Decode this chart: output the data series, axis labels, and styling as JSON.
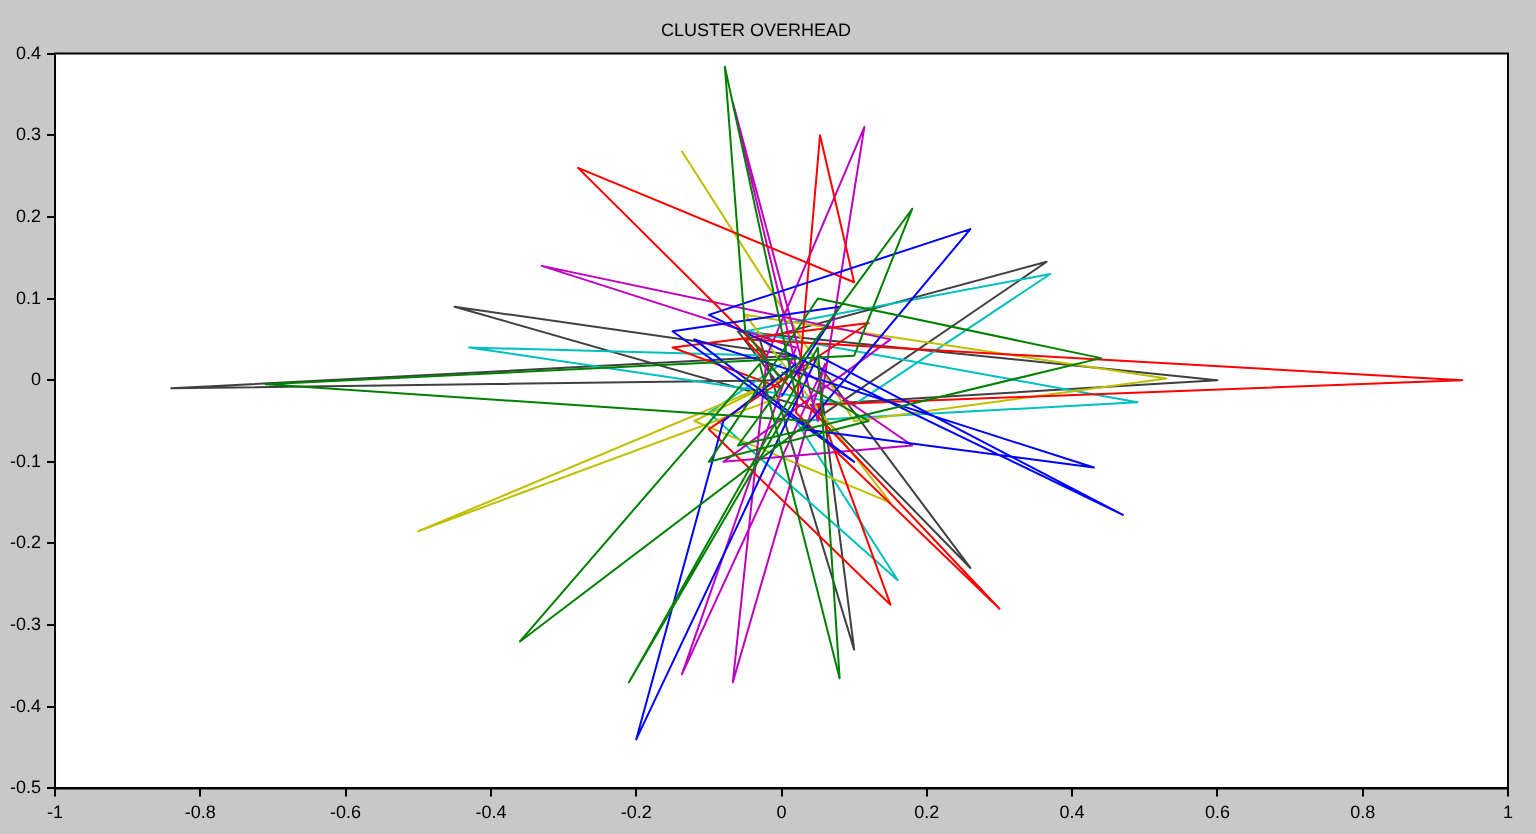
{
  "chart_data": {
    "type": "line",
    "title": "CLUSTER OVERHEAD",
    "xlim": [
      -1,
      1
    ],
    "ylim": [
      -0.5,
      0.4
    ],
    "xticks": [
      -1,
      -0.8,
      -0.6,
      -0.4,
      -0.2,
      0,
      0.2,
      0.4,
      0.6,
      0.8,
      1
    ],
    "yticks": [
      -0.5,
      -0.4,
      -0.3,
      -0.2,
      -0.1,
      0,
      0.1,
      0.2,
      0.3,
      0.4
    ],
    "grid": false,
    "legend": false,
    "marker": "none",
    "line_style": "solid",
    "series": [
      {
        "color": "#008000",
        "x": [
          0,
          -0.05,
          -0.078,
          0.02,
          -0.21,
          0.05,
          0.08,
          -0.03,
          -0.36,
          0.04,
          -0.71,
          0.1,
          0.18,
          -0.06,
          0.44,
          0.05,
          -0.1,
          0.12,
          0
        ],
        "values": [
          0,
          0.06,
          0.384,
          -0.02,
          -0.37,
          0.04,
          -0.365,
          0.02,
          -0.32,
          -0.05,
          -0.005,
          0.03,
          0.21,
          -0.08,
          0.027,
          0.1,
          -0.1,
          -0.05,
          0.01
        ]
      },
      {
        "color": "#0000ff",
        "x": [
          0.02,
          -0.08,
          -0.2,
          0.05,
          0.47,
          -0.1,
          0.26,
          0.03,
          0.43,
          -0.12,
          0.1,
          -0.15,
          0.08,
          0
        ],
        "values": [
          0.02,
          -0.05,
          -0.44,
          0.03,
          -0.165,
          0.08,
          0.185,
          -0.06,
          -0.107,
          0.05,
          -0.1,
          0.06,
          0.09,
          -0.02
        ]
      },
      {
        "color": "#ff0000",
        "x": [
          -0.02,
          -0.28,
          0.1,
          0.053,
          0.02,
          0.3,
          -0.05,
          0.937,
          0.05,
          0.15,
          -0.1,
          0.12,
          -0.15,
          0
        ],
        "values": [
          0.03,
          0.26,
          0.12,
          0.3,
          -0.04,
          -0.28,
          0.05,
          0,
          -0.03,
          -0.275,
          -0.06,
          0.07,
          0.04,
          -0.01
        ]
      },
      {
        "color": "#bf00bf",
        "x": [
          0.03,
          -0.067,
          0.05,
          0.114,
          -0.02,
          -0.067,
          0.06,
          -0.137,
          0.02,
          -0.33,
          0.15,
          -0.08,
          0.18,
          0
        ],
        "values": [
          -0.02,
          0.34,
          -0.05,
          0.31,
          0.03,
          -0.37,
          0.02,
          -0.36,
          0.04,
          0.14,
          0.05,
          -0.1,
          -0.08,
          0.03
        ]
      },
      {
        "color": "#bfbf00",
        "x": [
          0,
          -0.5,
          0.05,
          -0.137,
          0.1,
          0.53,
          -0.05,
          0.15,
          -0.12,
          0.02
        ],
        "values": [
          -0.02,
          -0.185,
          0.02,
          0.28,
          -0.05,
          0.002,
          0.08,
          -0.15,
          -0.05,
          0.01
        ]
      },
      {
        "color": "#00bfbf",
        "x": [
          -0.02,
          -0.43,
          0.1,
          0.37,
          -0.05,
          0.49,
          0.02,
          0.16,
          -0.1,
          0
        ],
        "values": [
          0.03,
          0.04,
          -0.03,
          0.13,
          0.06,
          -0.027,
          -0.05,
          -0.245,
          -0.04,
          0.02
        ]
      },
      {
        "color": "#404040",
        "x": [
          0,
          -0.84,
          0.02,
          -0.45,
          0.06,
          0.365,
          -0.03,
          0.1,
          0.05,
          0.26,
          0.04,
          0.6,
          -0.06,
          0
        ],
        "values": [
          0,
          -0.01,
          0.03,
          0.09,
          -0.04,
          0.145,
          0.05,
          -0.33,
          0.02,
          -0.23,
          -0.03,
          0,
          0.06,
          -0.01
        ]
      }
    ]
  }
}
